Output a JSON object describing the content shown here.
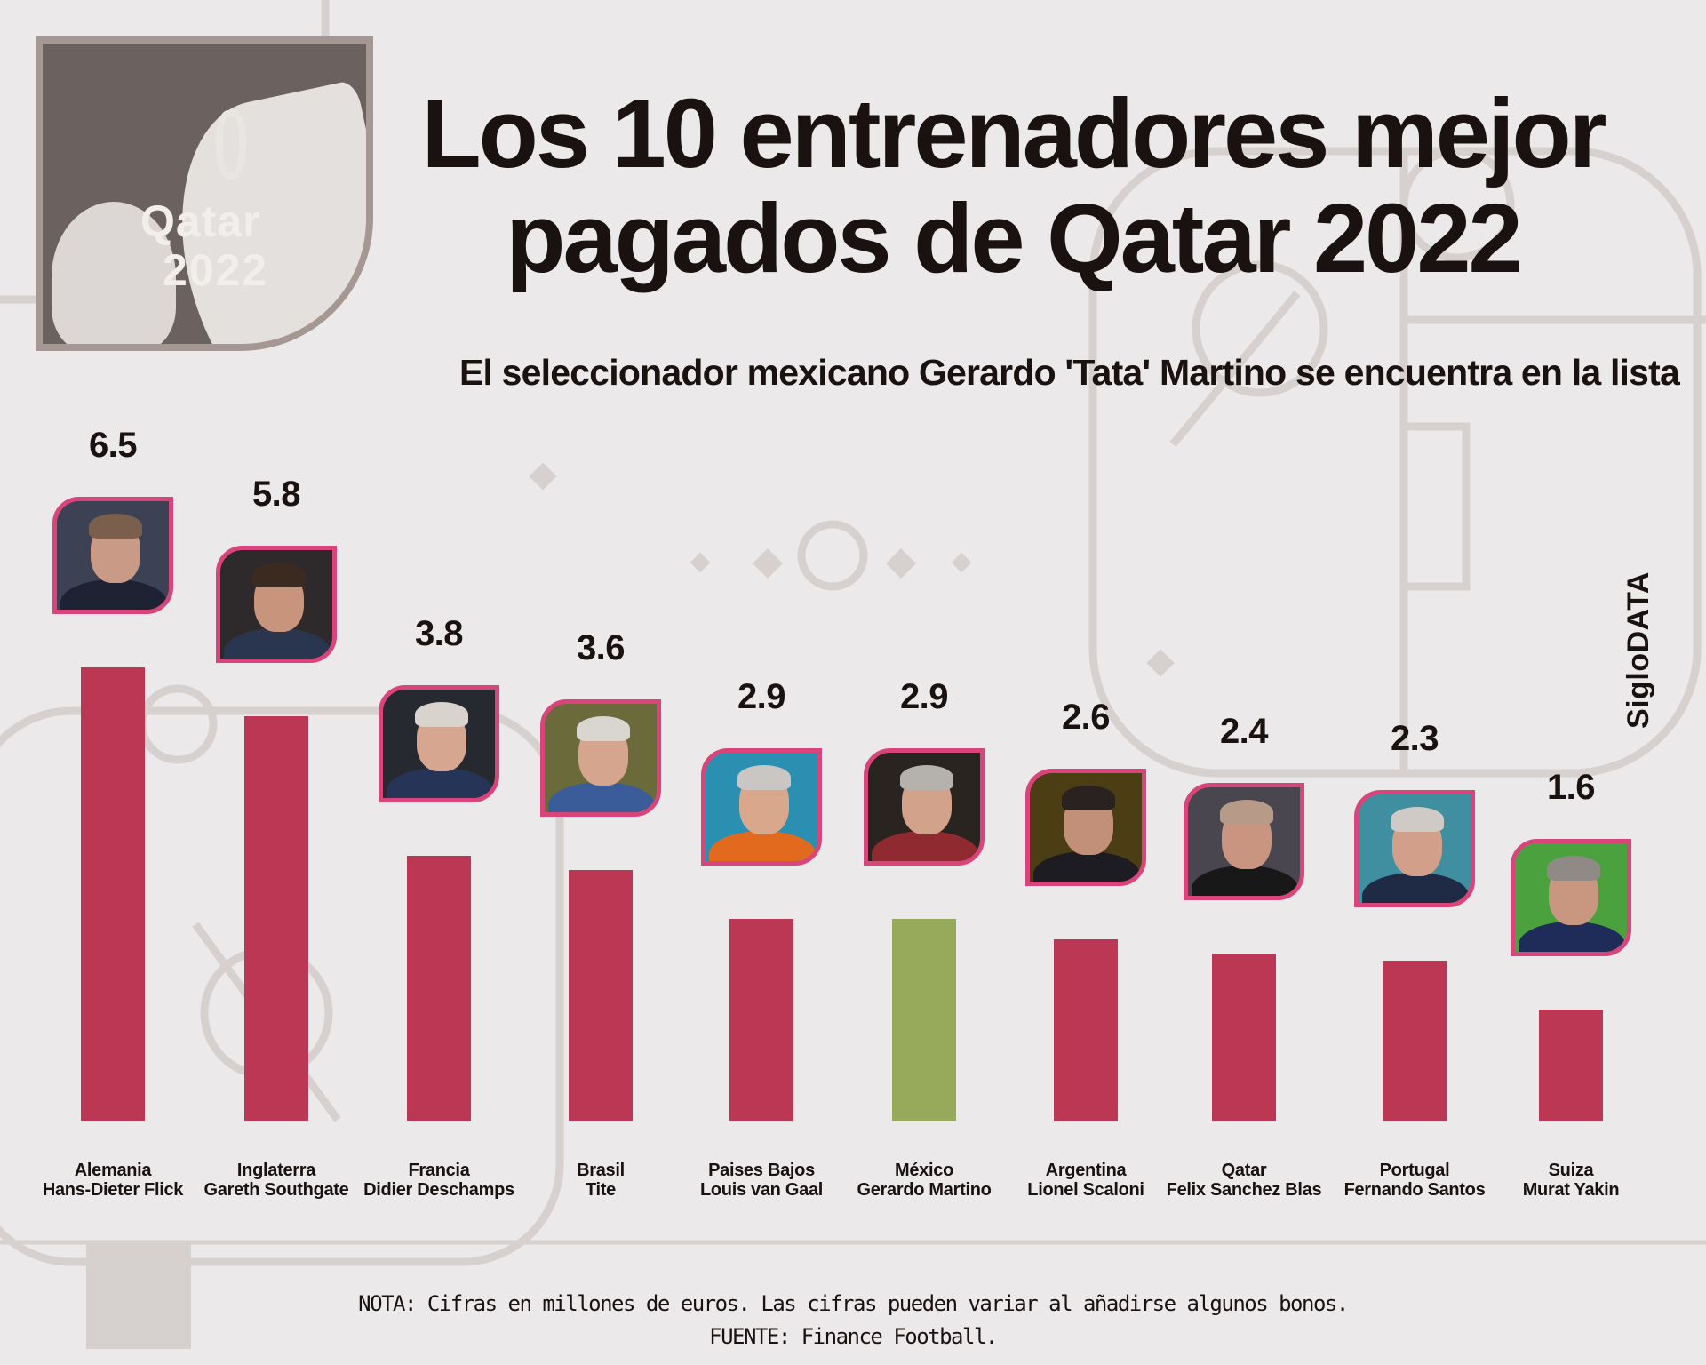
{
  "header": {
    "logo": {
      "wordmark": "Qatar",
      "year": "2022"
    },
    "title_line1": "Los 10 entrenadores mejor",
    "title_line2": "pagados de Qatar 2022",
    "subtitle": "El seleccionador mexicano Gerardo 'Tata' Martino se encuentra en la lista",
    "credit": "SigloDATA"
  },
  "colors": {
    "bar_default": "#bb3754",
    "bar_highlight": "#97a95a",
    "photo_border": "#d9457a",
    "background": "#ebe9e9",
    "text": "#1a1210"
  },
  "chart_data": {
    "type": "bar",
    "title": "Los 10 entrenadores mejor pagados de Qatar 2022",
    "subtitle": "El seleccionador mexicano Gerardo 'Tata' Martino se encuentra en la lista",
    "xlabel": "",
    "ylabel": "Millones de euros",
    "ylim": [
      0,
      6.5
    ],
    "grid": false,
    "legend": "none",
    "categories": [
      {
        "country": "Alemania",
        "coach": "Hans-Dieter Flick"
      },
      {
        "country": "Inglaterra",
        "coach": "Gareth Southgate"
      },
      {
        "country": "Francia",
        "coach": "Didier Deschamps"
      },
      {
        "country": "Brasil",
        "coach": "Tite"
      },
      {
        "country": "Paises Bajos",
        "coach": "Louis van Gaal"
      },
      {
        "country": "México",
        "coach": "Gerardo Martino"
      },
      {
        "country": "Argentina",
        "coach": "Lionel Scaloni"
      },
      {
        "country": "Qatar",
        "coach": "Felix Sanchez Blas"
      },
      {
        "country": "Portugal",
        "coach": "Fernando Santos"
      },
      {
        "country": "Suiza",
        "coach": "Murat Yakin"
      }
    ],
    "values": [
      6.5,
      5.8,
      3.8,
      3.6,
      2.9,
      2.9,
      2.6,
      2.4,
      2.3,
      1.6
    ],
    "value_labels": [
      "6.5",
      "5.8",
      "3.8",
      "3.6",
      "2.9",
      "2.9",
      "2.6",
      "2.4",
      "2.3",
      "1.6"
    ],
    "highlight_index": 5
  },
  "footer": {
    "note": "NOTA: Cifras en millones de euros. Las cifras pueden variar al añadirse algunos bonos.",
    "source": "FUENTE: Finance Football."
  }
}
